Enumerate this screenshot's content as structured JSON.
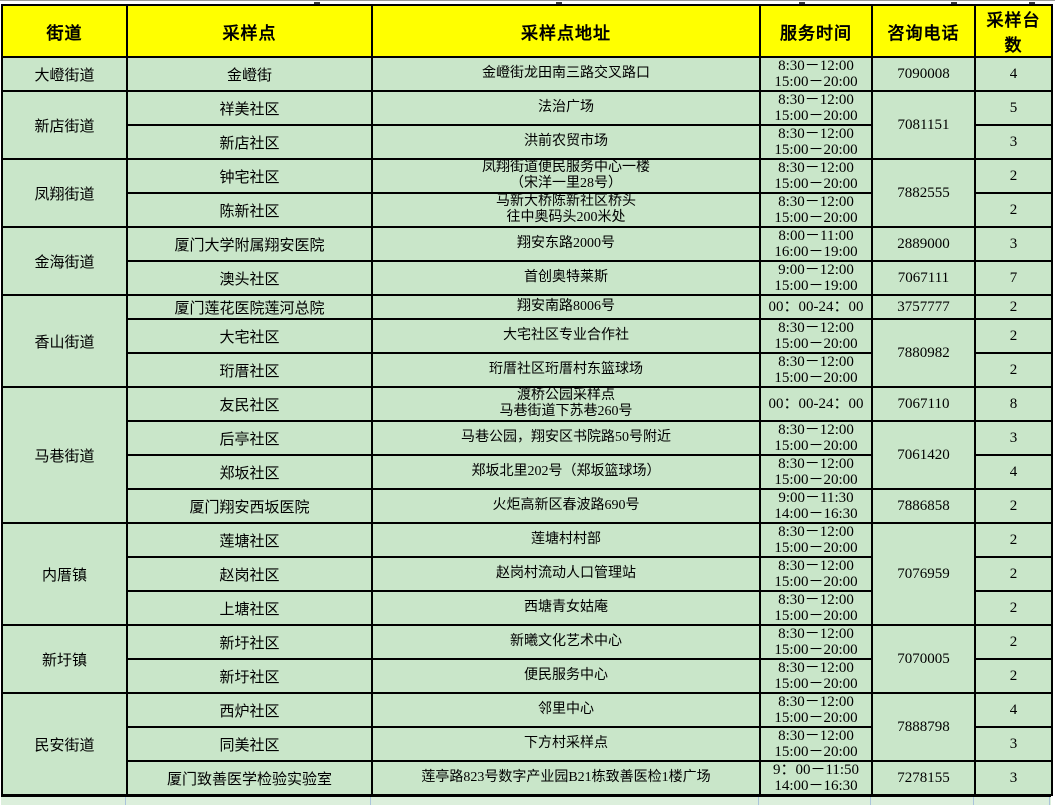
{
  "columns": [
    "街道",
    "采样点",
    "采样点地址",
    "服务时间",
    "咨询电话",
    "采样台数"
  ],
  "colors": {
    "header_bg": "#FFFF00",
    "cell_bg": "#C9E6C9",
    "border": "#000000",
    "partial_row_bg": "#DCEFDC"
  },
  "rows": [
    {
      "street": "大嶝街道",
      "street_span": 1,
      "site": "金嶝街",
      "address": [
        "金嶝街龙田南三路交叉路口"
      ],
      "time": [
        "8:30－12:00",
        "15:00－20:00"
      ],
      "phone": "7090008",
      "phone_span": 1,
      "stations": "4"
    },
    {
      "street": "新店街道",
      "street_span": 2,
      "site": "祥美社区",
      "address": [
        "法治广场"
      ],
      "time": [
        "8:30－12:00",
        "15:00－20:00"
      ],
      "phone": "7081151",
      "phone_span": 2,
      "stations": "5"
    },
    {
      "site": "新店社区",
      "address": [
        "洪前农贸市场"
      ],
      "time": [
        "8:30－12:00",
        "15:00－20:00"
      ],
      "stations": "3"
    },
    {
      "street": "凤翔街道",
      "street_span": 2,
      "site": "钟宅社区",
      "address": [
        "凤翔街道便民服务中心一楼",
        "（宋洋一里28号）"
      ],
      "time": [
        "8:30－12:00",
        "15:00－20:00"
      ],
      "phone": "7882555",
      "phone_span": 2,
      "stations": "2"
    },
    {
      "site": "陈新社区",
      "address": [
        "马新大桥陈新社区桥头",
        "往中奥码头200米处"
      ],
      "time": [
        "8:30－12:00",
        "15:00－20:00"
      ],
      "stations": "2"
    },
    {
      "street": "金海街道",
      "street_span": 2,
      "site": "厦门大学附属翔安医院",
      "address": [
        "翔安东路2000号"
      ],
      "time": [
        "8:00－11:00",
        "16:00－19:00"
      ],
      "phone": "2889000",
      "phone_span": 1,
      "stations": "3"
    },
    {
      "site": "澳头社区",
      "address": [
        "首创奥特莱斯"
      ],
      "time": [
        "9:00－12:00",
        "15:00－19:00"
      ],
      "phone": "7067111",
      "phone_span": 1,
      "stations": "7"
    },
    {
      "street": "香山街道",
      "street_span": 3,
      "site": "厦门莲花医院莲河总院",
      "address": [
        "翔安南路8006号"
      ],
      "time": [
        "00：00-24：00"
      ],
      "phone": "3757777",
      "phone_span": 1,
      "stations": "2"
    },
    {
      "site": "大宅社区",
      "address": [
        "大宅社区专业合作社"
      ],
      "time": [
        "8:30－12:00",
        "15:00－20:00"
      ],
      "phone": "7880982",
      "phone_span": 2,
      "stations": "2"
    },
    {
      "site": "珩厝社区",
      "address": [
        "珩厝社区珩厝村东篮球场"
      ],
      "time": [
        "8:30－12:00",
        "15:00－20:00"
      ],
      "stations": "2"
    },
    {
      "street": "马巷街道",
      "street_span": 4,
      "site": "友民社区",
      "address": [
        "渡桥公园采样点",
        "马巷街道下苏巷260号"
      ],
      "time": [
        "00：00-24：00"
      ],
      "phone": "7067110",
      "phone_span": 1,
      "stations": "8"
    },
    {
      "site": "后亭社区",
      "address": [
        "马巷公园，翔安区书院路50号附近"
      ],
      "time": [
        "8:30－12:00",
        "15:00－20:00"
      ],
      "phone": "7061420",
      "phone_span": 2,
      "stations": "3"
    },
    {
      "site": "郑坂社区",
      "address": [
        "郑坂北里202号（郑坂篮球场）"
      ],
      "time": [
        "8:30－12:00",
        "15:00－20:00"
      ],
      "stations": "4"
    },
    {
      "site": "厦门翔安西坂医院",
      "address": [
        "火炬高新区春波路690号"
      ],
      "time": [
        "9:00－11:30",
        "14:00－16:30"
      ],
      "phone": "7886858",
      "phone_span": 1,
      "stations": "2"
    },
    {
      "street": "内厝镇",
      "street_span": 3,
      "site": "莲塘社区",
      "address": [
        "莲塘村村部"
      ],
      "time": [
        "8:30－12:00",
        "15:00－20:00"
      ],
      "phone": "7076959",
      "phone_span": 3,
      "stations": "2"
    },
    {
      "site": "赵岗社区",
      "address": [
        "赵岗村流动人口管理站"
      ],
      "time": [
        "8:30－12:00",
        "15:00－20:00"
      ],
      "stations": "2"
    },
    {
      "site": "上塘社区",
      "address": [
        "西塘青女姑庵"
      ],
      "time": [
        "8:30－12:00",
        "15:00－20:00"
      ],
      "stations": "2"
    },
    {
      "street": "新圩镇",
      "street_span": 2,
      "site": "新圩社区",
      "address": [
        "新曦文化艺术中心"
      ],
      "time": [
        "8:30－12:00",
        "15:00－20:00"
      ],
      "phone": "7070005",
      "phone_span": 2,
      "stations": "2"
    },
    {
      "site": "新圩社区",
      "address": [
        "便民服务中心"
      ],
      "time": [
        "8:30－12:00",
        "15:00－20:00"
      ],
      "stations": "2"
    },
    {
      "street": "民安街道",
      "street_span": 3,
      "site": "西炉社区",
      "address": [
        "邻里中心"
      ],
      "time": [
        "8:30－12:00",
        "15:00－20:00"
      ],
      "phone": "7888798",
      "phone_span": 2,
      "stations": "4"
    },
    {
      "site": "同美社区",
      "address": [
        "下方村采样点"
      ],
      "time": [
        "8:30－12:00",
        "15:00－20:00"
      ],
      "stations": "3"
    },
    {
      "site": "厦门致善医学检验实验室",
      "address": [
        "莲亭路823号数字产业园B21栋致善医检1楼广场"
      ],
      "time": [
        "9：00－11:50",
        "14:00－16:30"
      ],
      "phone": "7278155",
      "phone_span": 1,
      "stations": "3"
    }
  ]
}
